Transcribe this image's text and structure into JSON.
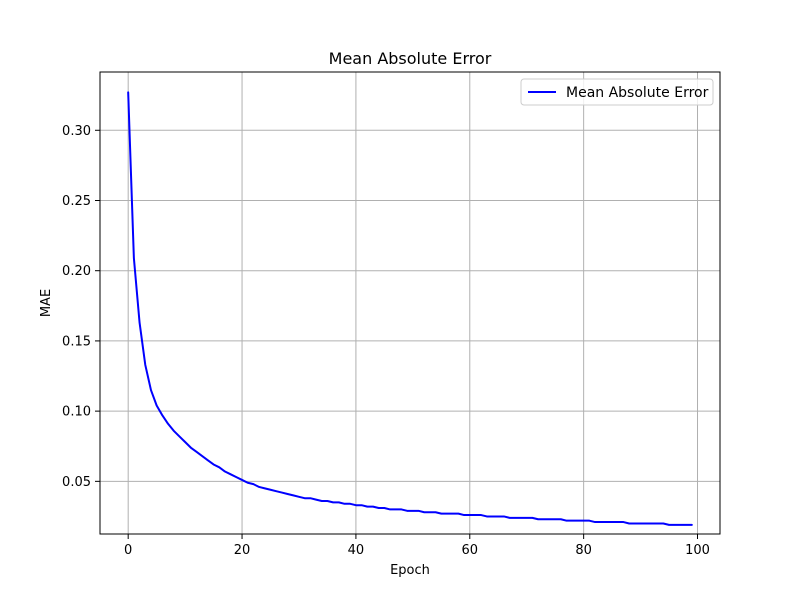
{
  "chart_data": {
    "type": "line",
    "title": "Mean Absolute Error",
    "xlabel": "Epoch",
    "ylabel": "MAE",
    "xlim": [
      -4.95,
      103.95
    ],
    "ylim": [
      0.0125,
      0.3415
    ],
    "xticks": [
      0,
      20,
      40,
      60,
      80,
      100
    ],
    "yticks": [
      0.05,
      0.1,
      0.15,
      0.2,
      0.25,
      0.3
    ],
    "xtick_labels": [
      "0",
      "20",
      "40",
      "60",
      "80",
      "100"
    ],
    "ytick_labels": [
      "0.05",
      "0.10",
      "0.15",
      "0.20",
      "0.25",
      "0.30"
    ],
    "grid": true,
    "legend_position": "top-right",
    "series": [
      {
        "name": "Mean Absolute Error",
        "color": "#0000ff",
        "x": [
          0,
          1,
          2,
          3,
          4,
          5,
          6,
          7,
          8,
          9,
          10,
          11,
          12,
          13,
          14,
          15,
          16,
          17,
          18,
          19,
          20,
          21,
          22,
          23,
          24,
          25,
          26,
          27,
          28,
          29,
          30,
          31,
          32,
          33,
          34,
          35,
          36,
          37,
          38,
          39,
          40,
          41,
          42,
          43,
          44,
          45,
          46,
          47,
          48,
          49,
          50,
          51,
          52,
          53,
          54,
          55,
          56,
          57,
          58,
          59,
          60,
          61,
          62,
          63,
          64,
          65,
          66,
          67,
          68,
          69,
          70,
          71,
          72,
          73,
          74,
          75,
          76,
          77,
          78,
          79,
          80,
          81,
          82,
          83,
          84,
          85,
          86,
          87,
          88,
          89,
          90,
          91,
          92,
          93,
          94,
          95,
          96,
          97,
          98,
          99
        ],
        "y": [
          0.327,
          0.209,
          0.163,
          0.133,
          0.115,
          0.104,
          0.097,
          0.091,
          0.086,
          0.082,
          0.078,
          0.074,
          0.071,
          0.068,
          0.065,
          0.062,
          0.06,
          0.057,
          0.055,
          0.053,
          0.051,
          0.049,
          0.048,
          0.046,
          0.045,
          0.044,
          0.043,
          0.042,
          0.041,
          0.04,
          0.039,
          0.038,
          0.038,
          0.037,
          0.036,
          0.036,
          0.035,
          0.035,
          0.034,
          0.034,
          0.033,
          0.033,
          0.032,
          0.032,
          0.031,
          0.031,
          0.03,
          0.03,
          0.03,
          0.029,
          0.029,
          0.029,
          0.028,
          0.028,
          0.028,
          0.027,
          0.027,
          0.027,
          0.027,
          0.026,
          0.026,
          0.026,
          0.026,
          0.025,
          0.025,
          0.025,
          0.025,
          0.024,
          0.024,
          0.024,
          0.024,
          0.024,
          0.023,
          0.023,
          0.023,
          0.023,
          0.023,
          0.022,
          0.022,
          0.022,
          0.022,
          0.022,
          0.021,
          0.021,
          0.021,
          0.021,
          0.021,
          0.021,
          0.02,
          0.02,
          0.02,
          0.02,
          0.02,
          0.02,
          0.02,
          0.019,
          0.019,
          0.019,
          0.019,
          0.019
        ]
      }
    ]
  }
}
